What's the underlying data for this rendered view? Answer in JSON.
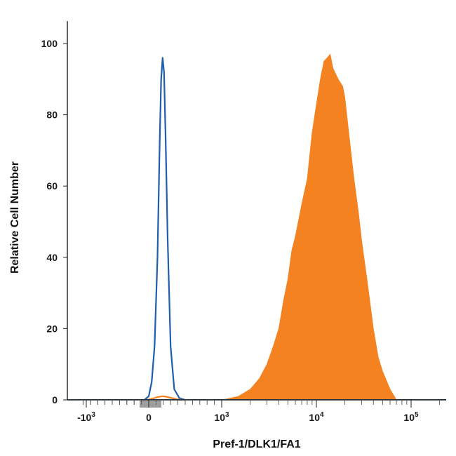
{
  "chart_data": {
    "type": "area",
    "title": "",
    "xlabel": "Pref-1/DLK1/FA1",
    "ylabel": "Relative Cell Number",
    "x_scale": "biexponential (log with linear region near 0)",
    "xlim": [
      -1600,
      250000
    ],
    "ylim": [
      0,
      105
    ],
    "y_ticks": [
      0,
      20,
      40,
      60,
      80,
      100
    ],
    "x_ticks": [
      {
        "value": -1000,
        "base": "-10",
        "exp": "3"
      },
      {
        "value": 0,
        "base": "0",
        "exp": ""
      },
      {
        "value": 1000,
        "base": "10",
        "exp": "3"
      },
      {
        "value": 10000,
        "base": "10",
        "exp": "4"
      },
      {
        "value": 100000,
        "base": "10",
        "exp": "5"
      }
    ],
    "grid": false,
    "legend": "none",
    "series": [
      {
        "style": "filled",
        "color": "#f58220",
        "x": [
          1000,
          1500,
          2000,
          2500,
          3000,
          3500,
          4000,
          4500,
          5000,
          5500,
          6000,
          7000,
          8000,
          9000,
          10000,
          11000,
          12000,
          13000,
          14000,
          15000,
          17000,
          19000,
          20000,
          22000,
          25000,
          28000,
          30000,
          35000,
          40000,
          45000,
          50000,
          60000,
          70000
        ],
        "y": [
          0,
          1,
          3,
          6,
          10,
          15,
          20,
          28,
          34,
          42,
          46,
          55,
          62,
          75,
          83,
          90,
          95,
          96,
          97,
          93,
          90,
          88,
          85,
          75,
          62,
          52,
          45,
          32,
          20,
          12,
          8,
          3,
          0
        ]
      },
      {
        "style": "outline",
        "color": "#1f5fae",
        "x": [
          -60,
          0,
          40,
          80,
          120,
          150,
          170,
          190,
          210,
          230,
          260,
          300,
          350,
          420,
          500
        ],
        "y": [
          0,
          1,
          5,
          15,
          40,
          72,
          90,
          96,
          92,
          75,
          45,
          15,
          3,
          0.5,
          0
        ]
      },
      {
        "style": "outline",
        "color": "#f58220",
        "x": [
          -20,
          60,
          120,
          180,
          240,
          300,
          380,
          450
        ],
        "y": [
          0,
          0.4,
          0.8,
          1.0,
          0.9,
          0.6,
          0.2,
          0
        ]
      }
    ]
  },
  "colors": {
    "sample": "#f58220",
    "isotype": "#1f5fae",
    "gate_marker": "#9e9e9e",
    "axis": "#222222"
  }
}
